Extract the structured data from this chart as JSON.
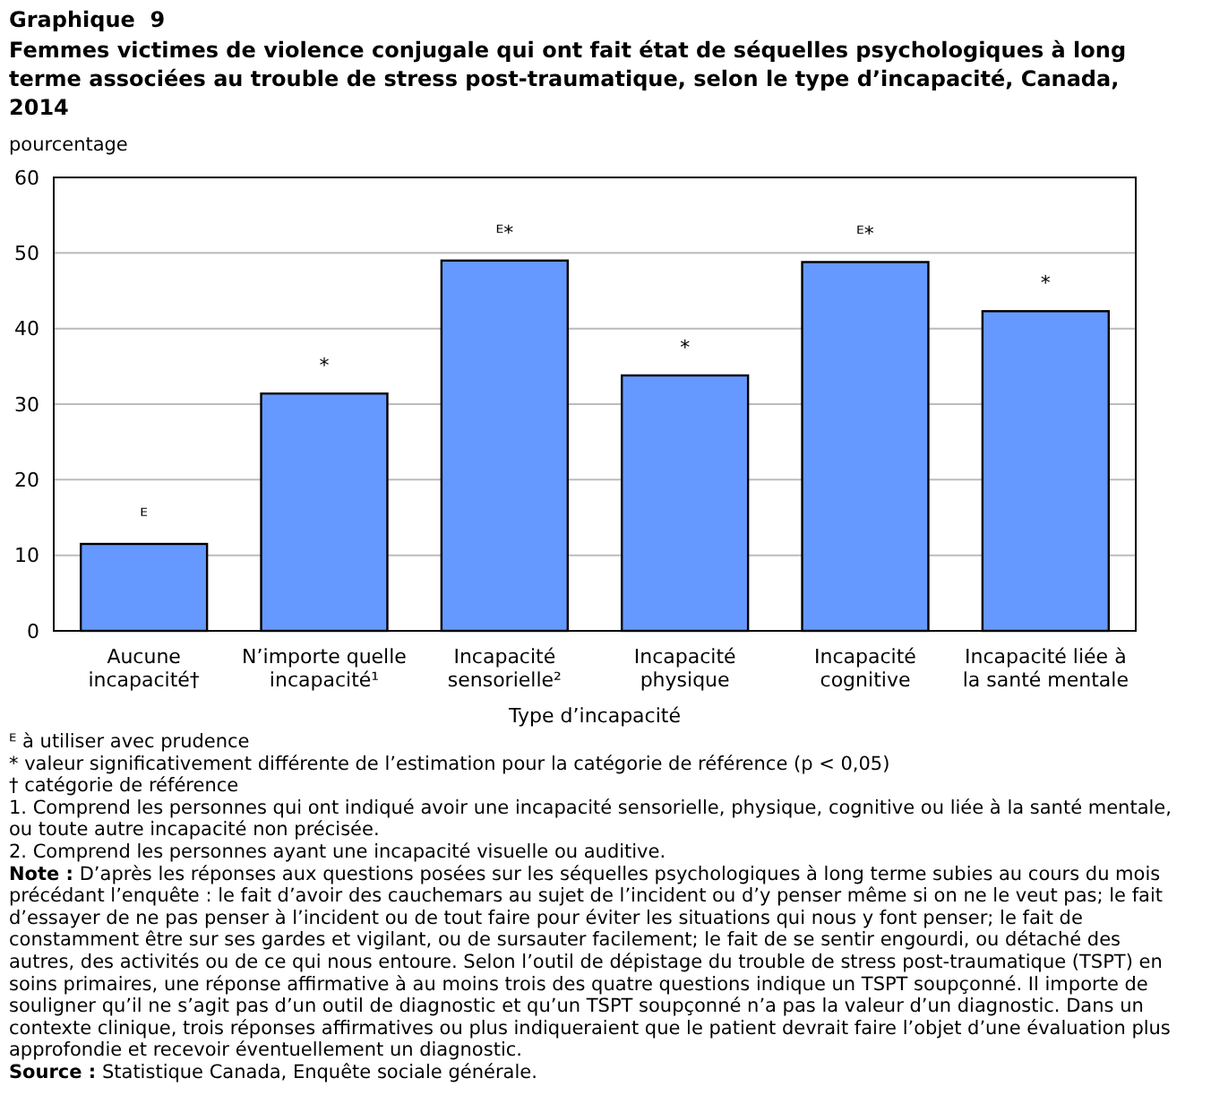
{
  "chart_data": {
    "type": "bar",
    "title": "Graphique  9",
    "subtitle": "Femmes victimes de violence conjugale qui ont fait état de séquelles psychologiques à long terme associées au trouble de stress post-traumatique, selon le type d’incapacité, Canada, 2014",
    "ylabel": "pourcentage",
    "xlabel": "Type d’incapacité",
    "categories": [
      "Aucune incapacité†",
      "N’importe quelle incapacité¹",
      "Incapacité sensorielle²",
      "Incapacité physique",
      "Incapacité cognitive",
      "Incapacité liée à la santé mentale"
    ],
    "values": [
      11.5,
      31.4,
      49.0,
      33.8,
      48.8,
      42.3
    ],
    "value_labels": [
      "ᴱ",
      "*",
      "ᴱ*",
      "*",
      "ᴱ*",
      "*"
    ],
    "color": "#6699ff",
    "ylim": [
      0,
      60
    ],
    "yticks": [
      0,
      10,
      20,
      30,
      40,
      50,
      60
    ],
    "grid": "y",
    "annotations": [
      "ᴱ à utiliser avec prudence",
      "* valeur significativement différente de l’estimation pour la catégorie de référence (p < 0,05)",
      "† catégorie de référence",
      "1. Comprend les personnes qui ont indiqué avoir une incapacité sensorielle, physique, cognitive ou liée à la santé mentale, ou toute autre incapacité non précisée.",
      "2. Comprend les personnes ayant une incapacité visuelle ou auditive.",
      "Note : D’après les réponses aux questions posées sur les séquelles psychologiques à long terme subies au cours du mois précédant l’enquête : le fait d’avoir des cauchemars au sujet de l’incident ou d’y penser même si on ne le veut pas; le fait d’essayer de ne pas penser à l’incident ou de tout faire pour éviter les situations qui nous y font penser; le fait de constamment être sur ses gardes et vigilant, ou de sursauter facilement; le fait de se sentir engourdi, ou détaché des autres, des activités ou de ce qui nous entoure. Selon l’outil de dépistage du trouble de stress post-traumatique (TSPT) en soins primaires, une réponse affirmative à au moins trois des quatre questions indique un TSPT soupçonné. Il importe de souligner qu’il ne s’agit pas d’un outil de diagnostic et qu’un TSPT soupçonné n’a pas la valeur d’un diagnostic. Dans un contexte clinique, trois réponses affirmatives ou plus indiqueraient que le patient devrait faire l’objet d’une évaluation plus approfondie et recevoir éventuellement un diagnostic.",
      "Source : Statistique Canada, Enquête sociale générale."
    ]
  }
}
